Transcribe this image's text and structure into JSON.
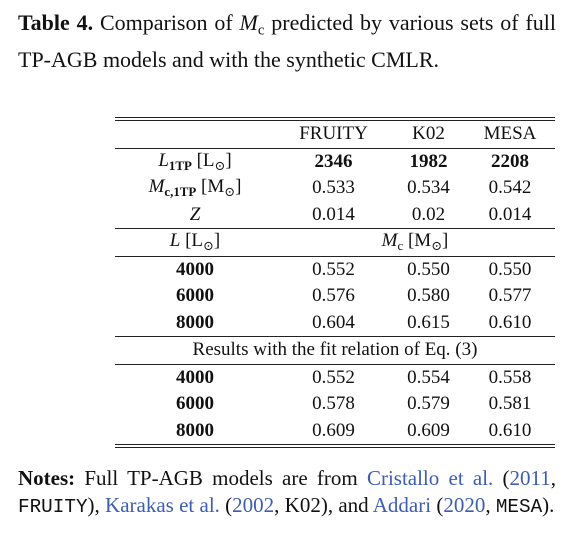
{
  "caption": [
    {
      "text": "Table 4.",
      "style": "bold"
    },
    {
      "text": " Comparison of "
    },
    {
      "text": "M",
      "style": "math"
    },
    {
      "text": "c",
      "style": "sub"
    },
    {
      "text": " predicted by various sets of full TP-AGB models and with the synthetic CMLR."
    }
  ],
  "table": {
    "columns": [
      "FRUITY",
      "K02",
      "MESA"
    ],
    "parameter_rows": [
      {
        "label": [
          {
            "text": "L",
            "style": "math"
          },
          {
            "text": "1TP",
            "style": "sub-bold"
          },
          {
            "text": " [L"
          },
          {
            "text": "⊙",
            "style": "sub"
          },
          {
            "text": "]"
          }
        ],
        "value_style": "bold",
        "values": [
          "2346",
          "1982",
          "2208"
        ]
      },
      {
        "label": [
          {
            "text": "M",
            "style": "math"
          },
          {
            "text": "c,1TP",
            "style": "sub-bold"
          },
          {
            "text": " [M"
          },
          {
            "text": "⊙",
            "style": "sub"
          },
          {
            "text": "]"
          }
        ],
        "values": [
          "0.533",
          "0.534",
          "0.542"
        ]
      },
      {
        "label": [
          {
            "text": "Z",
            "style": "math"
          }
        ],
        "values": [
          "0.014",
          "0.02",
          "0.014"
        ]
      }
    ],
    "section_header": {
      "row_label": [
        {
          "text": "L",
          "style": "math"
        },
        {
          "text": " [L"
        },
        {
          "text": "⊙",
          "style": "sub"
        },
        {
          "text": "]"
        }
      ],
      "value_label": [
        {
          "text": "M",
          "style": "math"
        },
        {
          "text": "c",
          "style": "sub"
        },
        {
          "text": " [M"
        },
        {
          "text": "⊙",
          "style": "sub"
        },
        {
          "text": "]"
        }
      ]
    },
    "model_rows": [
      {
        "label": [
          {
            "text": "4000",
            "style": "bold"
          }
        ],
        "values": [
          "0.552",
          "0.550",
          "0.550"
        ]
      },
      {
        "label": [
          {
            "text": "6000",
            "style": "bold"
          }
        ],
        "values": [
          "0.576",
          "0.580",
          "0.577"
        ]
      },
      {
        "label": [
          {
            "text": "8000",
            "style": "bold"
          }
        ],
        "values": [
          "0.604",
          "0.615",
          "0.610"
        ]
      }
    ],
    "fit_heading": "Results with the fit relation of Eq. (3)",
    "fit_rows": [
      {
        "label": [
          {
            "text": "4000",
            "style": "bold"
          }
        ],
        "values": [
          "0.552",
          "0.554",
          "0.558"
        ]
      },
      {
        "label": [
          {
            "text": "6000",
            "style": "bold"
          }
        ],
        "values": [
          "0.578",
          "0.579",
          "0.581"
        ]
      },
      {
        "label": [
          {
            "text": "8000",
            "style": "bold"
          }
        ],
        "values": [
          "0.609",
          "0.609",
          "0.610"
        ]
      }
    ]
  },
  "notes": [
    {
      "text": "Notes:",
      "style": "bold"
    },
    {
      "text": " Full TP-AGB models are from "
    },
    {
      "text": "Cristallo et al.",
      "style": "link"
    },
    {
      "text": " ("
    },
    {
      "text": "2011",
      "style": "link"
    },
    {
      "text": ", "
    },
    {
      "text": "FRUITY",
      "style": "mono"
    },
    {
      "text": "), "
    },
    {
      "text": "Karakas et al.",
      "style": "link"
    },
    {
      "text": " ("
    },
    {
      "text": "2002",
      "style": "link"
    },
    {
      "text": ", K02), and "
    },
    {
      "text": "Addari",
      "style": "link"
    },
    {
      "text": " ("
    },
    {
      "text": "2020",
      "style": "link"
    },
    {
      "text": ", "
    },
    {
      "text": "MESA",
      "style": "mono"
    },
    {
      "text": ")."
    }
  ]
}
